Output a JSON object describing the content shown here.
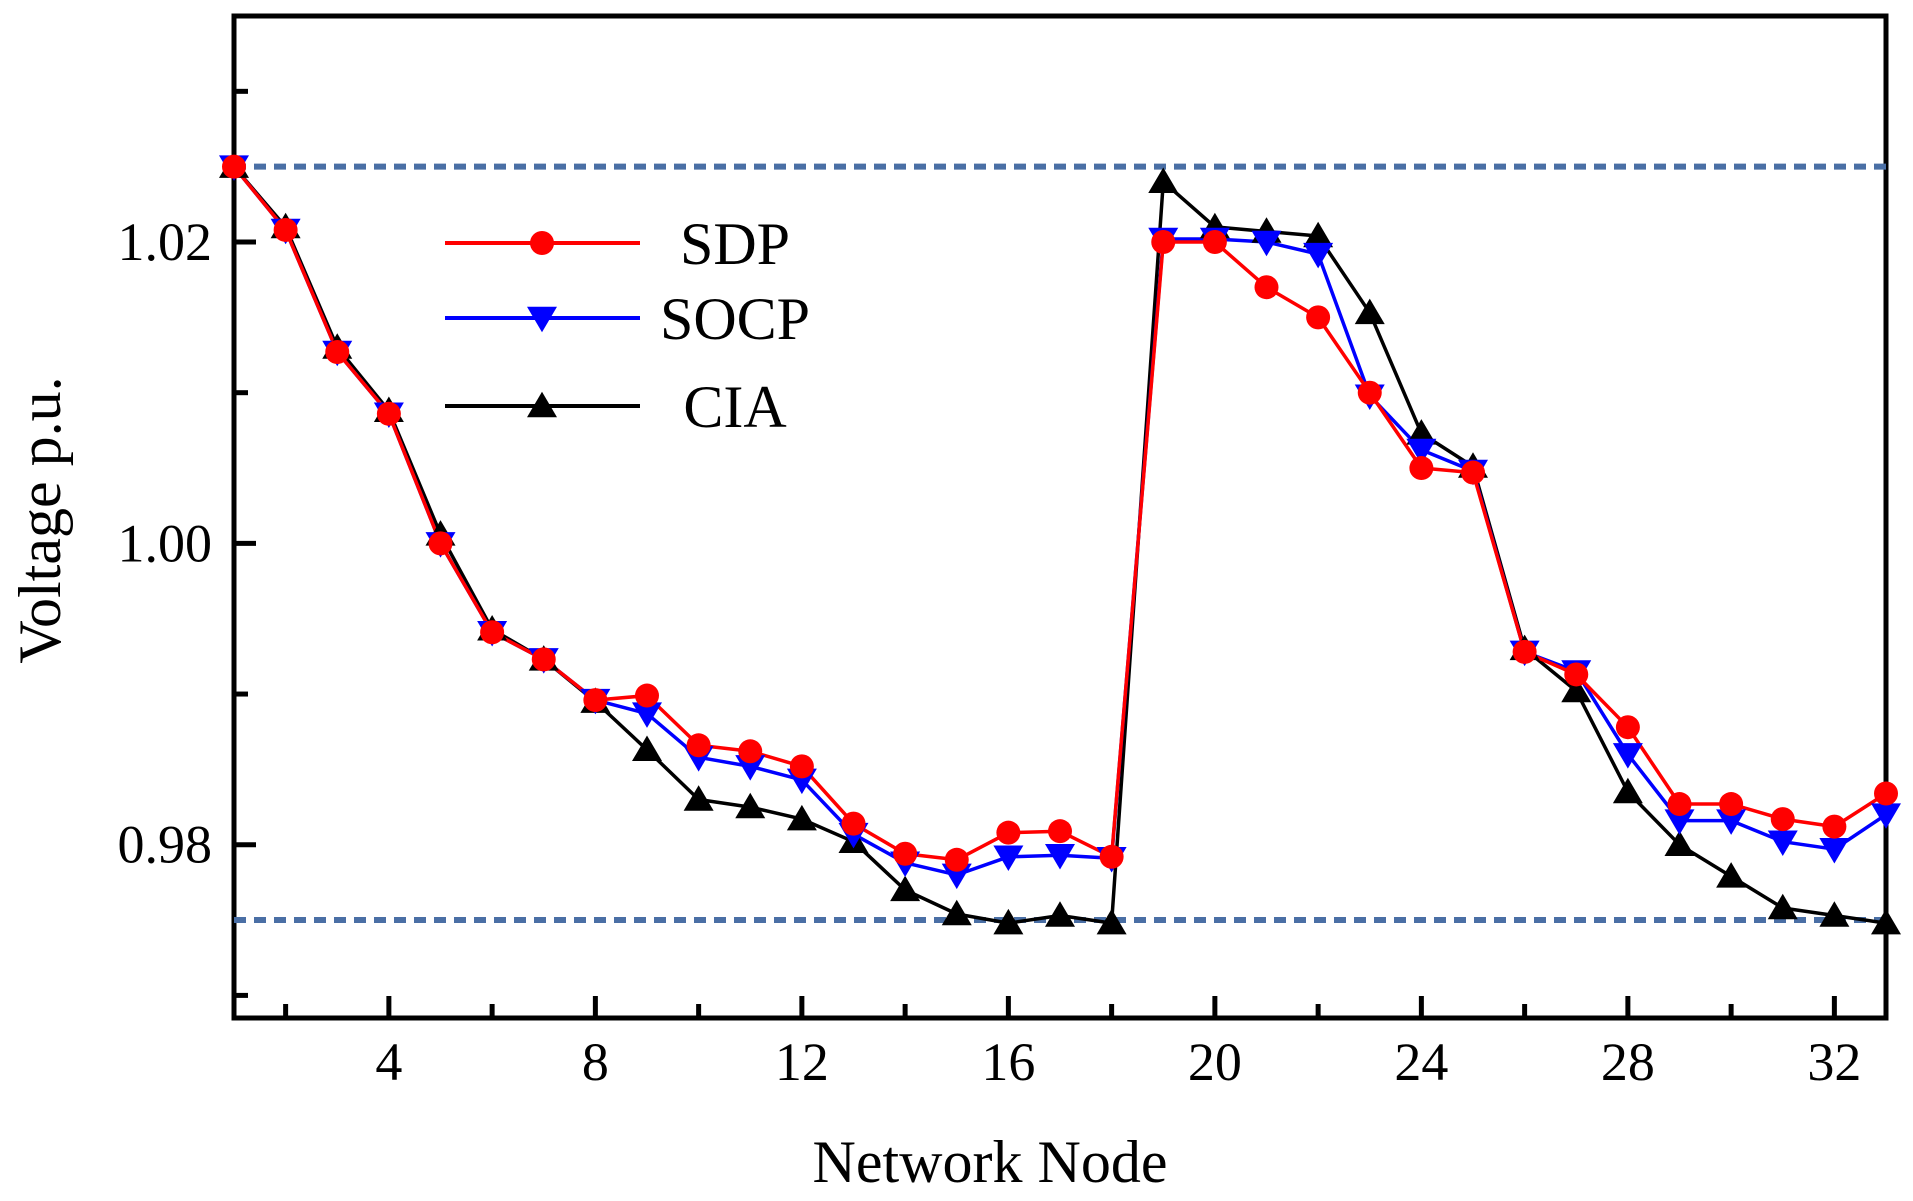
{
  "chart_data": {
    "type": "line",
    "title": "",
    "xlabel": "Network Node",
    "ylabel": "Voltage p.u.",
    "xlim": [
      1,
      33
    ],
    "ylim": [
      0.9685,
      1.035
    ],
    "x_ticks": [
      4,
      8,
      12,
      16,
      20,
      24,
      28,
      32
    ],
    "x_tick_labels": [
      "4",
      "8",
      "12",
      "16",
      "20",
      "24",
      "28",
      "32"
    ],
    "x_minor_ticks": [
      2,
      6,
      10,
      14,
      18,
      22,
      26,
      30
    ],
    "y_ticks": [
      0.98,
      1.0,
      1.02
    ],
    "y_tick_labels": [
      "0.98",
      "1.00",
      "1.02"
    ],
    "y_minor_ticks": [
      0.97,
      0.99,
      1.01,
      1.03
    ],
    "limits": [
      {
        "name": "upper-limit",
        "value": 1.025,
        "color": "#4a6fa5"
      },
      {
        "name": "lower-limit",
        "value": 0.975,
        "color": "#4a6fa5"
      }
    ],
    "x": [
      1,
      2,
      3,
      4,
      5,
      6,
      7,
      8,
      9,
      10,
      11,
      12,
      13,
      14,
      15,
      16,
      17,
      18,
      19,
      20,
      21,
      22,
      23,
      24,
      25,
      26,
      27,
      28,
      29,
      30,
      31,
      32,
      33
    ],
    "series": [
      {
        "name": "SDP",
        "color": "#ff0000",
        "marker": "circle",
        "values": [
          1.025,
          1.0208,
          1.0127,
          1.0086,
          1.0,
          0.9941,
          0.9923,
          0.9896,
          0.9899,
          0.9866,
          0.9862,
          0.9852,
          0.9814,
          0.9794,
          0.979,
          0.9808,
          0.9809,
          0.9792,
          1.02,
          1.02,
          1.017,
          1.015,
          1.01,
          1.005,
          1.0047,
          0.9928,
          0.9913,
          0.9878,
          0.9827,
          0.9827,
          0.9817,
          0.9812,
          0.9834
        ]
      },
      {
        "name": "SOCP",
        "color": "#0000ff",
        "marker": "triangle-down",
        "values": [
          1.025,
          1.0208,
          1.0127,
          1.0086,
          1.0,
          0.9941,
          0.9923,
          0.9896,
          0.9887,
          0.9858,
          0.9852,
          0.9843,
          0.9807,
          0.9788,
          0.978,
          0.9792,
          0.9793,
          0.9791,
          1.0202,
          1.0202,
          1.02,
          1.0192,
          1.0098,
          1.0062,
          1.0048,
          0.9928,
          0.9915,
          0.986,
          0.9816,
          0.9816,
          0.9802,
          0.9797,
          0.982
        ]
      },
      {
        "name": "CIA",
        "color": "#000000",
        "marker": "triangle-up",
        "values": [
          1.025,
          1.021,
          1.013,
          1.0088,
          1.0006,
          0.9943,
          0.9923,
          0.9895,
          0.9863,
          0.983,
          0.9825,
          0.9817,
          0.9802,
          0.977,
          0.9754,
          0.9748,
          0.9753,
          0.9748,
          1.024,
          1.021,
          1.0207,
          1.0204,
          1.0153,
          1.0073,
          1.0051,
          0.993,
          0.9902,
          0.9835,
          0.98,
          0.9779,
          0.9758,
          0.9753,
          0.9748
        ]
      }
    ]
  }
}
